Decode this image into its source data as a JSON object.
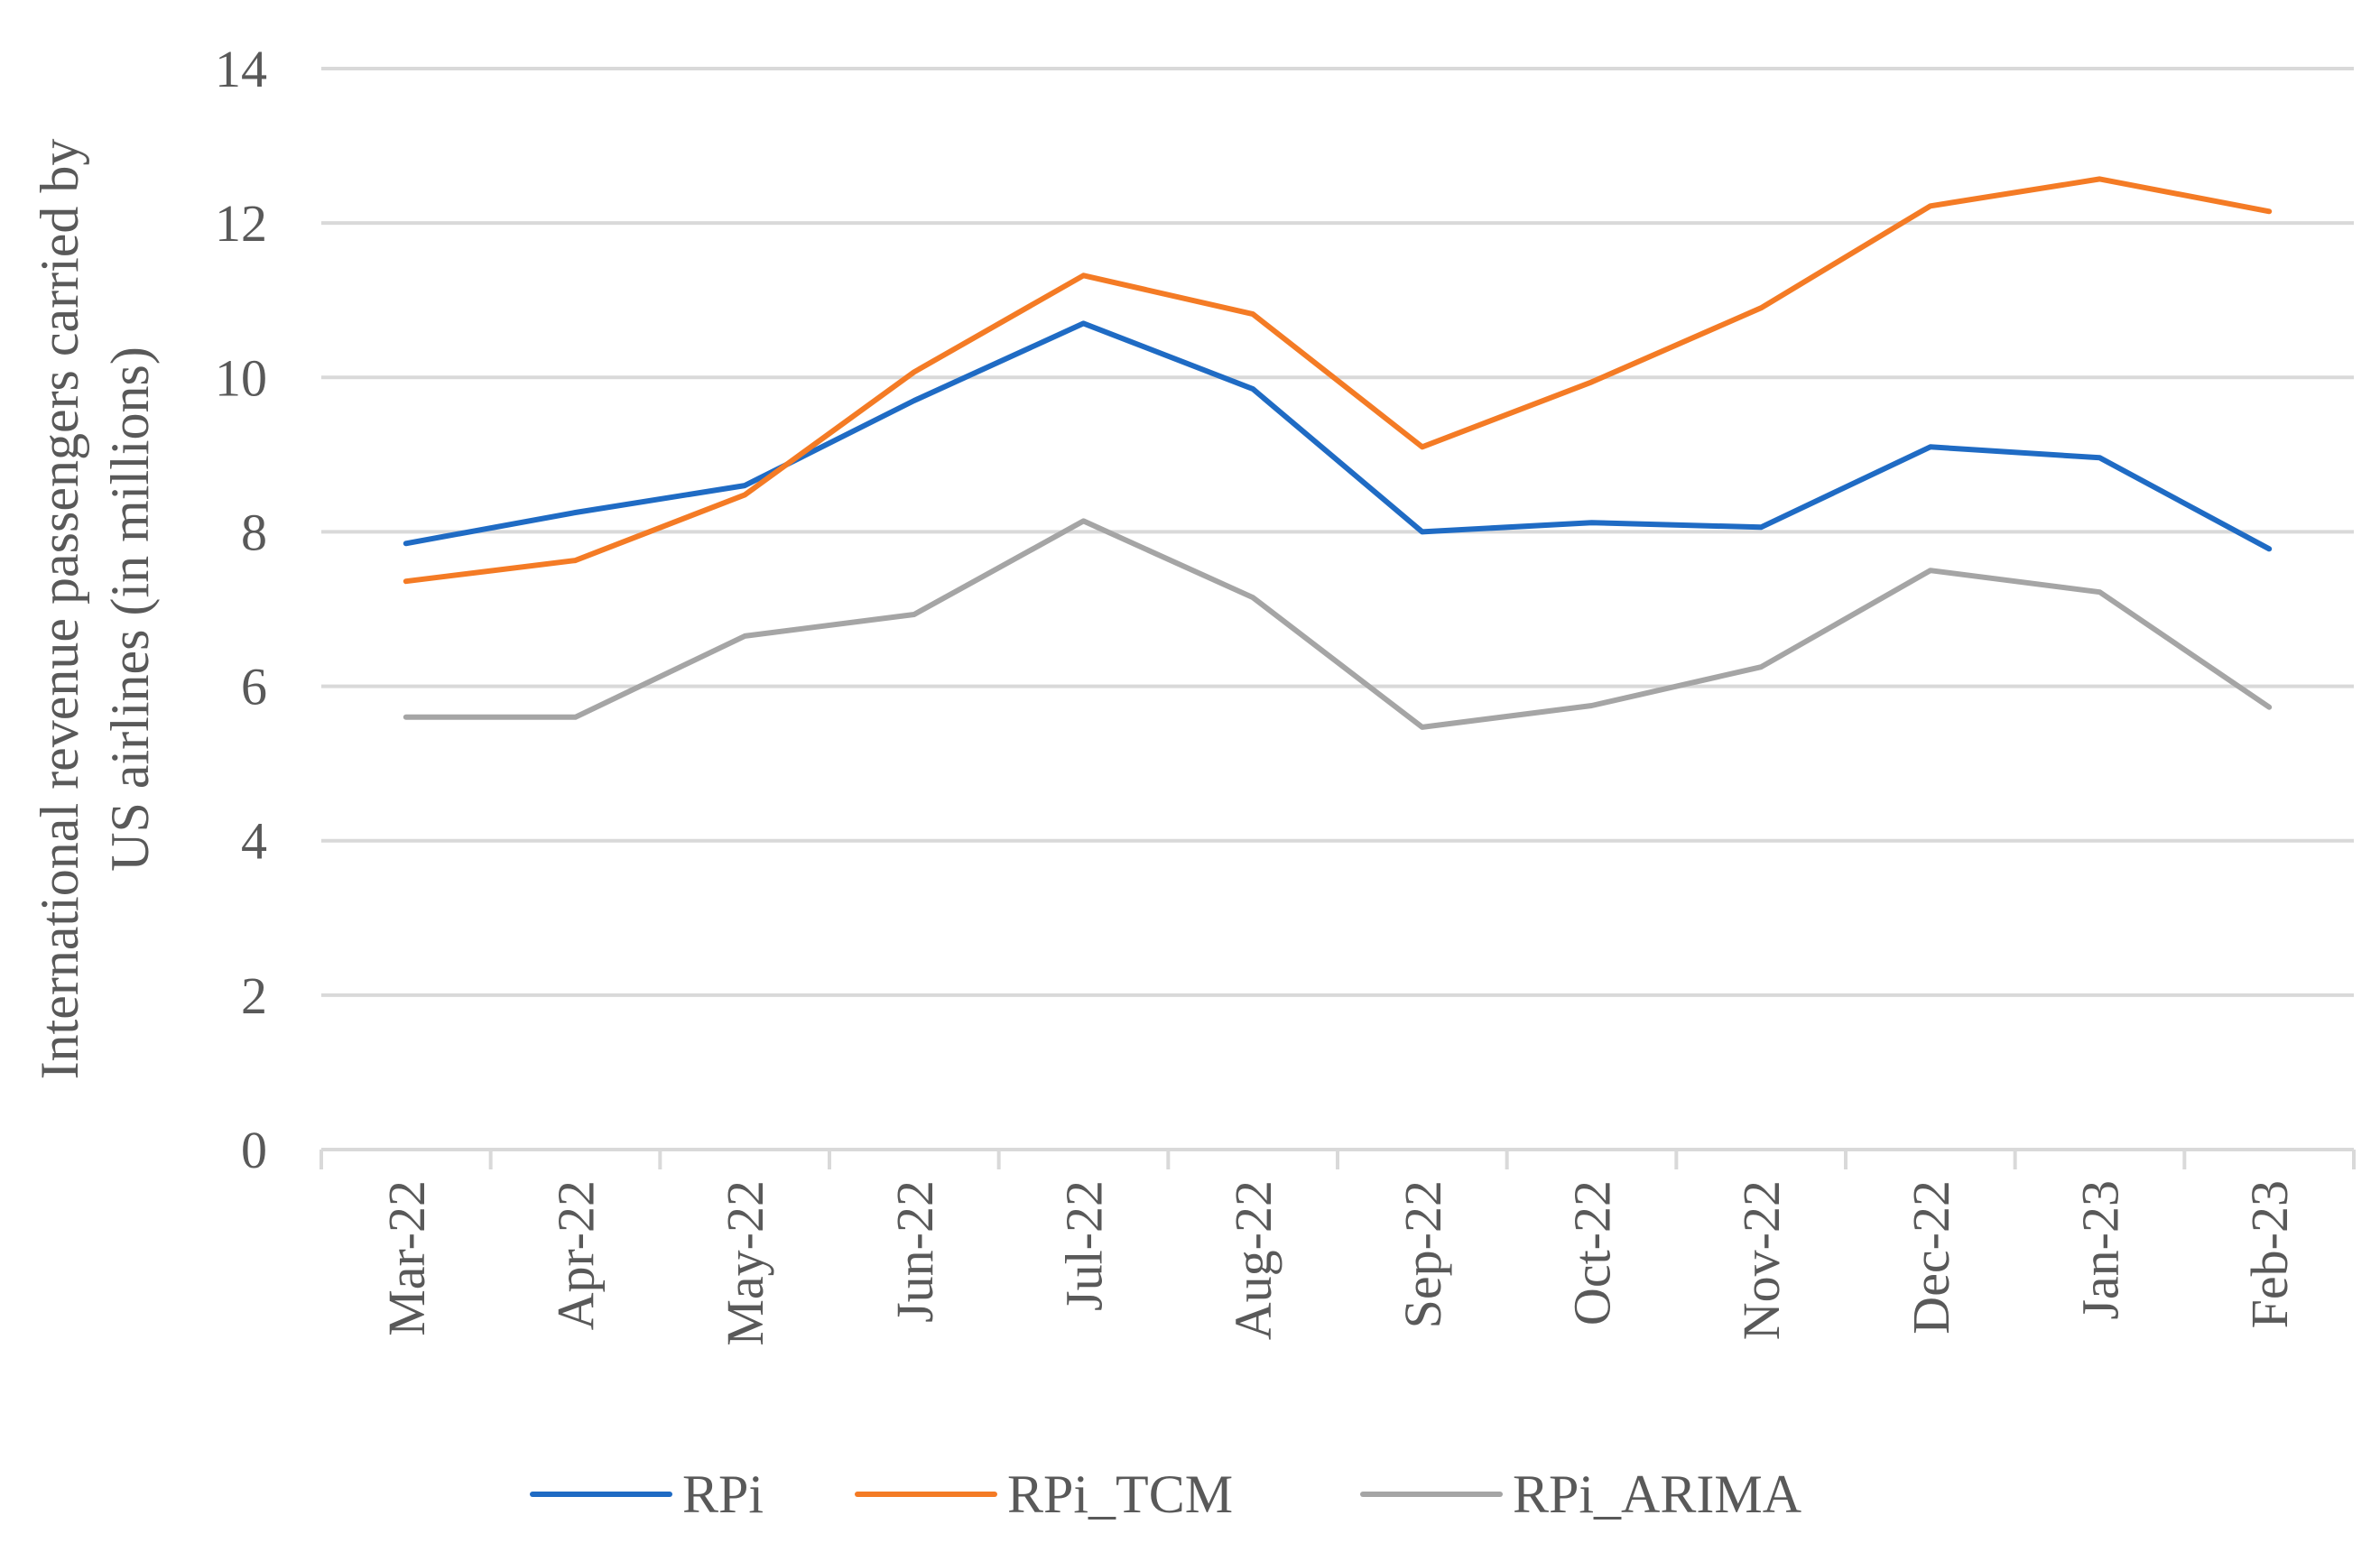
{
  "chart_data": {
    "type": "line",
    "title": "",
    "xlabel": "",
    "ylabel_lines": [
      "International revenue passengers carried by",
      "US airlines (in millions)"
    ],
    "categories": [
      "Mar-22",
      "Apr-22",
      "May-22",
      "Jun-22",
      "Jul-22",
      "Aug-22",
      "Sep-22",
      "Oct-22",
      "Nov-22",
      "Dec-22",
      "Jan-23",
      "Feb-23"
    ],
    "ylim": [
      0,
      14
    ],
    "yticks": [
      "0",
      "2",
      "4",
      "6",
      "8",
      "10",
      "12",
      "14"
    ],
    "grid": true,
    "legend_position": "bottom",
    "series": [
      {
        "name": "RPi",
        "color": "#1f6bc4",
        "values": [
          7.85,
          8.25,
          8.6,
          9.7,
          10.7,
          9.85,
          8.0,
          8.12,
          8.06,
          9.1,
          8.96,
          7.78
        ]
      },
      {
        "name": "RPi_TCM",
        "color": "#f47b25",
        "values": [
          7.36,
          7.63,
          8.48,
          10.07,
          11.32,
          10.82,
          9.1,
          9.94,
          10.9,
          12.22,
          12.57,
          12.15
        ]
      },
      {
        "name": "RPi_ARIMA",
        "color": "#a5a5a5",
        "values": [
          5.6,
          5.6,
          6.65,
          6.93,
          8.14,
          7.15,
          5.47,
          5.75,
          6.25,
          7.5,
          7.22,
          5.73
        ]
      }
    ]
  }
}
